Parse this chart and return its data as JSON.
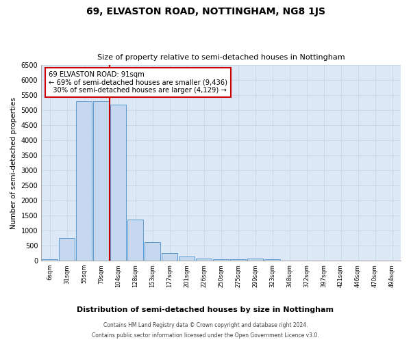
{
  "title": "69, ELVASTON ROAD, NOTTINGHAM, NG8 1JS",
  "subtitle": "Size of property relative to semi-detached houses in Nottingham",
  "xlabel_bottom": "Distribution of semi-detached houses by size in Nottingham",
  "ylabel": "Number of semi-detached properties",
  "property_label": "69 ELVASTON ROAD: 91sqm",
  "pct_smaller": 69,
  "n_smaller": 9436,
  "pct_larger": 30,
  "n_larger": 4129,
  "categories": [
    "6sqm",
    "31sqm",
    "55sqm",
    "79sqm",
    "104sqm",
    "128sqm",
    "153sqm",
    "177sqm",
    "201sqm",
    "226sqm",
    "250sqm",
    "275sqm",
    "299sqm",
    "323sqm",
    "348sqm",
    "372sqm",
    "397sqm",
    "421sqm",
    "446sqm",
    "470sqm",
    "494sqm"
  ],
  "values": [
    50,
    750,
    5300,
    5300,
    5200,
    1380,
    630,
    260,
    140,
    80,
    60,
    60,
    80,
    50,
    0,
    0,
    0,
    0,
    0,
    0,
    0
  ],
  "bar_color": "#c5d8f0",
  "bar_edge_color": "#5b9bd5",
  "vline_x": 3.5,
  "vline_color": "#cc0000",
  "ylim_max": 6500,
  "yticks": [
    0,
    500,
    1000,
    1500,
    2000,
    2500,
    3000,
    3500,
    4000,
    4500,
    5000,
    5500,
    6000,
    6500
  ],
  "grid_color": "#c8d9ea",
  "background_color": "#dce8f5",
  "footer_line1": "Contains HM Land Registry data © Crown copyright and database right 2024.",
  "footer_line2": "Contains public sector information licensed under the Open Government Licence v3.0."
}
